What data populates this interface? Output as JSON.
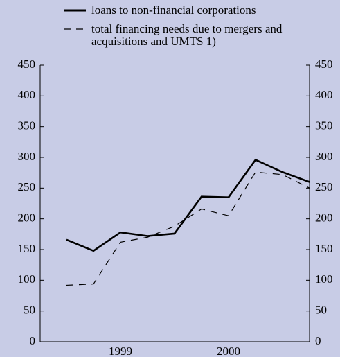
{
  "chart_data": {
    "type": "line",
    "categories": [
      null,
      null,
      "1999",
      null,
      null,
      null,
      "2000",
      null,
      null,
      null
    ],
    "series": [
      {
        "name": "loans to non-financial corporations",
        "color": "#000000",
        "dash": "solid",
        "values": [
          166,
          148,
          178,
          172,
          176,
          236,
          235,
          296,
          276,
          260
        ]
      },
      {
        "name": "total financing needs due to mergers and acquisitions and UMTS 1)",
        "color": "#000000",
        "dash": "dashed",
        "values": [
          92,
          94,
          162,
          170,
          188,
          216,
          205,
          276,
          272,
          250
        ]
      }
    ],
    "ylim": [
      0,
      450
    ],
    "yticks": [
      0,
      50,
      100,
      150,
      200,
      250,
      300,
      350,
      400,
      450
    ],
    "y2lim": [
      0,
      450
    ],
    "y2ticks": [
      0,
      50,
      100,
      150,
      200,
      250,
      300,
      350,
      400,
      450
    ],
    "grid": false
  }
}
